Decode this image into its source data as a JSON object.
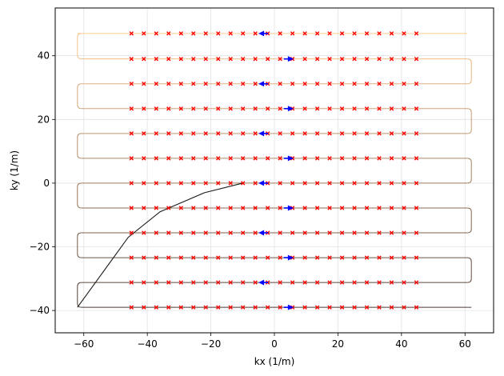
{
  "chart_data": {
    "type": "line",
    "title": "",
    "xlabel": "kx (1/m)",
    "ylabel": "ky (1/m)",
    "xlim": [
      -69,
      69
    ],
    "ylim": [
      -47,
      55
    ],
    "xticks": [
      -60,
      -40,
      -20,
      0,
      20,
      40,
      60
    ],
    "yticks": [
      -40,
      -20,
      0,
      20,
      40
    ],
    "xtick_labels": [
      "−60",
      "−40",
      "−20",
      "0",
      "20",
      "40",
      "60"
    ],
    "ytick_labels": [
      "−40",
      "−20",
      "0",
      "20",
      "40"
    ],
    "grid": true,
    "legend": "none",
    "trajectory": {
      "lead_in": {
        "color": "#1a1a1a",
        "x": [
          -10,
          -22,
          -36,
          -46,
          -54,
          -62
        ],
        "y": [
          0,
          -3,
          -9,
          -17,
          -28,
          -39
        ]
      },
      "raster_rows_y": [
        47,
        39,
        31.2,
        23.4,
        15.6,
        7.8,
        0,
        -7.8,
        -15.6,
        -23.4,
        -31.2,
        -39
      ],
      "row_direction": [
        -1,
        1,
        -1,
        1,
        -1,
        1,
        -1,
        1,
        -1,
        1,
        -1,
        1
      ],
      "x_min": -62,
      "x_max": 62,
      "turn_color_top": "#ffcb91",
      "turn_color_bottom": "#4b3a33"
    },
    "samples": {
      "marker": "x",
      "color": "#ff0000",
      "x_values": [
        -45,
        -41.1,
        -37.2,
        -33.3,
        -29.4,
        -25.5,
        -21.6,
        -17.7,
        -13.8,
        -9.9,
        -6,
        -2.1,
        1.8,
        5.7,
        9.6,
        13.5,
        17.4,
        21.3,
        25.2,
        29.1,
        33,
        36.9,
        40.8,
        44.7
      ],
      "rows_y": [
        47,
        39,
        31.2,
        23.4,
        15.6,
        7.8,
        0,
        -7.8,
        -15.6,
        -23.4,
        -31.2,
        -39
      ]
    },
    "direction_arrows": {
      "color": "#0000ff",
      "left_x": -4,
      "right_x": 5
    }
  }
}
